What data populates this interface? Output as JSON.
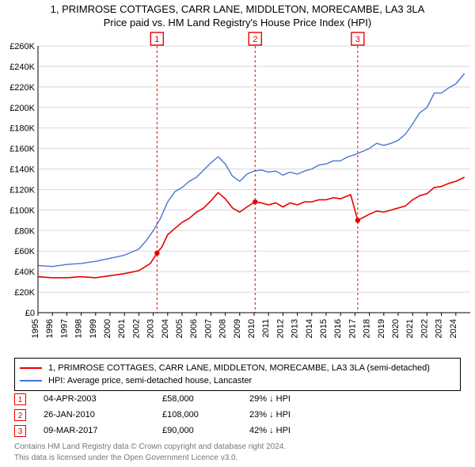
{
  "title_line1": "1, PRIMROSE COTTAGES, CARR LANE, MIDDLETON, MORECAMBE, LA3 3LA",
  "title_line2": "Price paid vs. HM Land Registry's House Price Index (HPI)",
  "chart": {
    "type": "line",
    "background_color": "#ffffff",
    "grid_color": "#d8d8d8",
    "axis_color": "#000000",
    "tick_fontsize": 11,
    "title_fontsize": 13,
    "x": {
      "min": 1995,
      "max": 2025,
      "ticks": [
        1995,
        1996,
        1997,
        1998,
        1999,
        2000,
        2001,
        2002,
        2003,
        2004,
        2005,
        2006,
        2007,
        2008,
        2009,
        2010,
        2011,
        2012,
        2013,
        2014,
        2015,
        2016,
        2017,
        2018,
        2019,
        2020,
        2021,
        2022,
        2023,
        2024
      ]
    },
    "y": {
      "min": 0,
      "max": 260000,
      "ticks": [
        0,
        20000,
        40000,
        60000,
        80000,
        100000,
        120000,
        140000,
        160000,
        180000,
        200000,
        220000,
        240000,
        260000
      ],
      "tick_labels": [
        "£0",
        "£20K",
        "£40K",
        "£60K",
        "£80K",
        "£100K",
        "£120K",
        "£140K",
        "£160K",
        "£180K",
        "£200K",
        "£220K",
        "£240K",
        "£260K"
      ]
    },
    "series": [
      {
        "name": "property",
        "color": "#e80000",
        "width": 1.6,
        "points": [
          [
            1995,
            35000
          ],
          [
            1996,
            34000
          ],
          [
            1997,
            34000
          ],
          [
            1998,
            35000
          ],
          [
            1999,
            34000
          ],
          [
            2000,
            36000
          ],
          [
            2001,
            38000
          ],
          [
            2002,
            41000
          ],
          [
            2002.8,
            48000
          ],
          [
            2003.26,
            58000
          ],
          [
            2003.26,
            58000
          ],
          [
            2003.6,
            64000
          ],
          [
            2004,
            76000
          ],
          [
            2004.5,
            82000
          ],
          [
            2005,
            88000
          ],
          [
            2005.5,
            92000
          ],
          [
            2006,
            98000
          ],
          [
            2006.5,
            102000
          ],
          [
            2007,
            109000
          ],
          [
            2007.5,
            117000
          ],
          [
            2008,
            111000
          ],
          [
            2008.5,
            102000
          ],
          [
            2009,
            98000
          ],
          [
            2009.5,
            103000
          ],
          [
            2010.07,
            108000
          ],
          [
            2010.07,
            108000
          ],
          [
            2010.5,
            107000
          ],
          [
            2011,
            105000
          ],
          [
            2011.5,
            107000
          ],
          [
            2012,
            103000
          ],
          [
            2012.5,
            107000
          ],
          [
            2013,
            105000
          ],
          [
            2013.5,
            108000
          ],
          [
            2014,
            108000
          ],
          [
            2014.5,
            110000
          ],
          [
            2015,
            110000
          ],
          [
            2015.5,
            112000
          ],
          [
            2016,
            111000
          ],
          [
            2016.7,
            115000
          ],
          [
            2017.19,
            90000
          ],
          [
            2017.19,
            90000
          ],
          [
            2017.6,
            93000
          ],
          [
            2018,
            96000
          ],
          [
            2018.5,
            99000
          ],
          [
            2019,
            98000
          ],
          [
            2019.5,
            100000
          ],
          [
            2020,
            102000
          ],
          [
            2020.5,
            104000
          ],
          [
            2021,
            110000
          ],
          [
            2021.5,
            114000
          ],
          [
            2022,
            116000
          ],
          [
            2022.5,
            122000
          ],
          [
            2023,
            123000
          ],
          [
            2023.5,
            126000
          ],
          [
            2024,
            128000
          ],
          [
            2024.6,
            132000
          ]
        ]
      },
      {
        "name": "hpi",
        "color": "#4a74d6",
        "width": 1.4,
        "points": [
          [
            1995,
            46000
          ],
          [
            1996,
            45000
          ],
          [
            1997,
            47000
          ],
          [
            1998,
            48000
          ],
          [
            1999,
            50000
          ],
          [
            2000,
            53000
          ],
          [
            2001,
            56000
          ],
          [
            2002,
            62000
          ],
          [
            2002.5,
            70000
          ],
          [
            2003,
            80000
          ],
          [
            2003.5,
            92000
          ],
          [
            2004,
            108000
          ],
          [
            2004.5,
            118000
          ],
          [
            2005,
            122000
          ],
          [
            2005.5,
            128000
          ],
          [
            2006,
            132000
          ],
          [
            2006.5,
            139000
          ],
          [
            2007,
            146000
          ],
          [
            2007.5,
            152000
          ],
          [
            2008,
            145000
          ],
          [
            2008.5,
            133000
          ],
          [
            2009,
            128000
          ],
          [
            2009.5,
            135000
          ],
          [
            2010,
            138000
          ],
          [
            2010.5,
            139000
          ],
          [
            2011,
            137000
          ],
          [
            2011.5,
            138000
          ],
          [
            2012,
            134000
          ],
          [
            2012.5,
            137000
          ],
          [
            2013,
            135000
          ],
          [
            2013.5,
            138000
          ],
          [
            2014,
            140000
          ],
          [
            2014.5,
            144000
          ],
          [
            2015,
            145000
          ],
          [
            2015.5,
            148000
          ],
          [
            2016,
            148000
          ],
          [
            2016.5,
            152000
          ],
          [
            2017,
            154000
          ],
          [
            2017.5,
            157000
          ],
          [
            2018,
            160000
          ],
          [
            2018.5,
            165000
          ],
          [
            2019,
            163000
          ],
          [
            2019.5,
            165000
          ],
          [
            2020,
            168000
          ],
          [
            2020.5,
            174000
          ],
          [
            2021,
            184000
          ],
          [
            2021.5,
            195000
          ],
          [
            2022,
            200000
          ],
          [
            2022.5,
            214000
          ],
          [
            2023,
            214000
          ],
          [
            2023.5,
            219000
          ],
          [
            2024,
            223000
          ],
          [
            2024.6,
            233000
          ]
        ]
      }
    ],
    "markers": [
      {
        "num": "1",
        "x": 2003.26,
        "y": 58000,
        "color": "#e80000"
      },
      {
        "num": "2",
        "x": 2010.07,
        "y": 108000,
        "color": "#e80000"
      },
      {
        "num": "3",
        "x": 2017.19,
        "y": 90000,
        "color": "#e80000"
      }
    ],
    "marker_label_top_offset": 13
  },
  "legend": {
    "items": [
      {
        "color": "#e80000",
        "label": "1, PRIMROSE COTTAGES, CARR LANE, MIDDLETON, MORECAMBE, LA3 3LA (semi-detached)"
      },
      {
        "color": "#4a74d6",
        "label": "HPI: Average price, semi-detached house, Lancaster"
      }
    ]
  },
  "sales": [
    {
      "num": "1",
      "date": "04-APR-2003",
      "price": "£58,000",
      "delta": "29% ↓ HPI",
      "color": "#e80000"
    },
    {
      "num": "2",
      "date": "26-JAN-2010",
      "price": "£108,000",
      "delta": "23% ↓ HPI",
      "color": "#e80000"
    },
    {
      "num": "3",
      "date": "09-MAR-2017",
      "price": "£90,000",
      "delta": "42% ↓ HPI",
      "color": "#e80000"
    }
  ],
  "footer_line1": "Contains HM Land Registry data © Crown copyright and database right 2024.",
  "footer_line2": "This data is licensed under the Open Government Licence v3.0."
}
